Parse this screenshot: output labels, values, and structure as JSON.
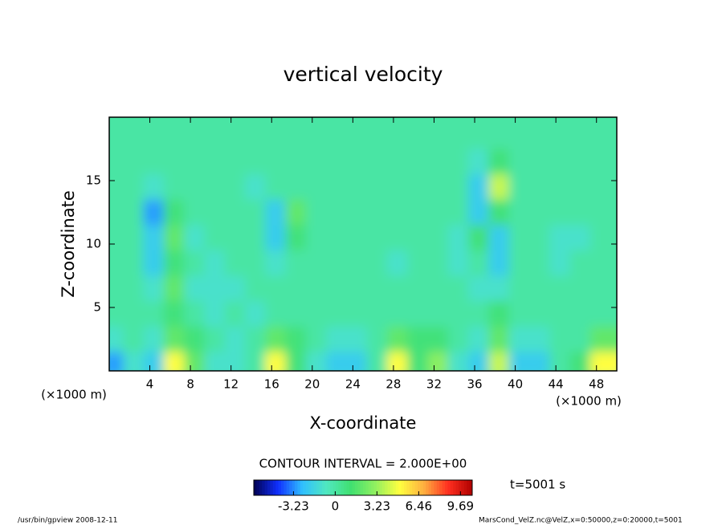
{
  "chart_data": {
    "type": "heatmap",
    "title": "vertical velocity",
    "x_label": "X-coordinate",
    "y_label": "Z-coordinate",
    "x_unit": "(×1000 m)",
    "y_unit": "(×1000 m)",
    "contour_interval": "CONTOUR INTERVAL = 2.000E+00",
    "time_label": "t=5001 s",
    "footer_left": "/usr/bin/gpview   2008-12-11",
    "footer_right": "MarsCond_VelZ.nc@VelZ,x=0:50000,z=0:20000,t=5001",
    "xlim": [
      0,
      50
    ],
    "ylim": [
      0,
      20
    ],
    "xticks": [
      4,
      8,
      12,
      16,
      20,
      24,
      28,
      32,
      36,
      40,
      44,
      48
    ],
    "yticks": [
      5,
      10,
      15
    ],
    "x": [
      1,
      3,
      5,
      7,
      9,
      11,
      13,
      15,
      17,
      19,
      21,
      23,
      25,
      27,
      29,
      31,
      33,
      35,
      37,
      39,
      41,
      43,
      45,
      47,
      49
    ],
    "y": [
      1,
      3,
      5,
      7,
      9,
      11,
      13,
      15,
      17,
      19
    ],
    "values": [
      [
        -3,
        -1,
        -2,
        5,
        2,
        -1,
        -1,
        0,
        5,
        1,
        -1,
        -2,
        -2,
        0,
        5,
        1,
        3,
        -1,
        -2,
        4,
        -2,
        -2,
        0,
        1,
        5
      ],
      [
        -1,
        0,
        -1,
        2,
        1,
        0,
        -1,
        0,
        2,
        1,
        0,
        -1,
        -1,
        0,
        2,
        1,
        1,
        0,
        -1,
        2,
        -1,
        -1,
        0,
        0,
        2
      ],
      [
        0,
        0,
        0,
        1,
        0,
        -1,
        0,
        -1,
        0,
        0,
        0,
        0,
        0,
        0,
        0,
        0,
        0,
        0,
        0,
        1,
        0,
        0,
        0,
        0,
        0
      ],
      [
        0,
        0,
        -1,
        2,
        -1,
        -1,
        -1,
        0,
        0,
        0,
        0,
        0,
        0,
        0,
        0,
        0,
        0,
        0,
        -1,
        -1,
        0,
        0,
        0,
        0,
        0
      ],
      [
        0,
        0,
        -2,
        1,
        0,
        -1,
        0,
        0,
        -1,
        0,
        0,
        0,
        0,
        0,
        -1,
        0,
        0,
        -1,
        0,
        -2,
        0,
        0,
        -1,
        0,
        0
      ],
      [
        0,
        0,
        -2,
        2,
        -1,
        0,
        0,
        0,
        -2,
        1,
        0,
        0,
        0,
        0,
        0,
        0,
        0,
        -1,
        1,
        -2,
        0,
        0,
        -1,
        -1,
        0
      ],
      [
        0,
        0,
        -3,
        1,
        0,
        0,
        0,
        0,
        -2,
        2,
        0,
        0,
        0,
        0,
        0,
        0,
        0,
        0,
        -2,
        1,
        0,
        0,
        0,
        0,
        0
      ],
      [
        0,
        0,
        -1,
        0,
        0,
        0,
        0,
        -1,
        0,
        0,
        0,
        0,
        0,
        0,
        0,
        0,
        0,
        0,
        -2,
        4,
        0,
        0,
        0,
        0,
        0
      ],
      [
        0,
        0,
        0,
        0,
        0,
        0,
        0,
        0,
        0,
        0,
        0,
        0,
        0,
        0,
        0,
        0,
        0,
        0,
        -1,
        1,
        0,
        0,
        0,
        0,
        0
      ],
      [
        0,
        0,
        0,
        0,
        0,
        0,
        0,
        0,
        0,
        0,
        0,
        0,
        0,
        0,
        0,
        0,
        0,
        0,
        0,
        0,
        0,
        0,
        0,
        0,
        0
      ]
    ],
    "clim": [
      -6.3,
      10.6
    ],
    "cticks": [
      -3.23,
      0,
      3.23,
      6.46,
      9.69
    ],
    "colormap": [
      "#000050",
      "#1030ff",
      "#30c0ff",
      "#50e8c0",
      "#40e070",
      "#90f060",
      "#ffff40",
      "#ffb040",
      "#ff3020",
      "#b00000"
    ]
  }
}
